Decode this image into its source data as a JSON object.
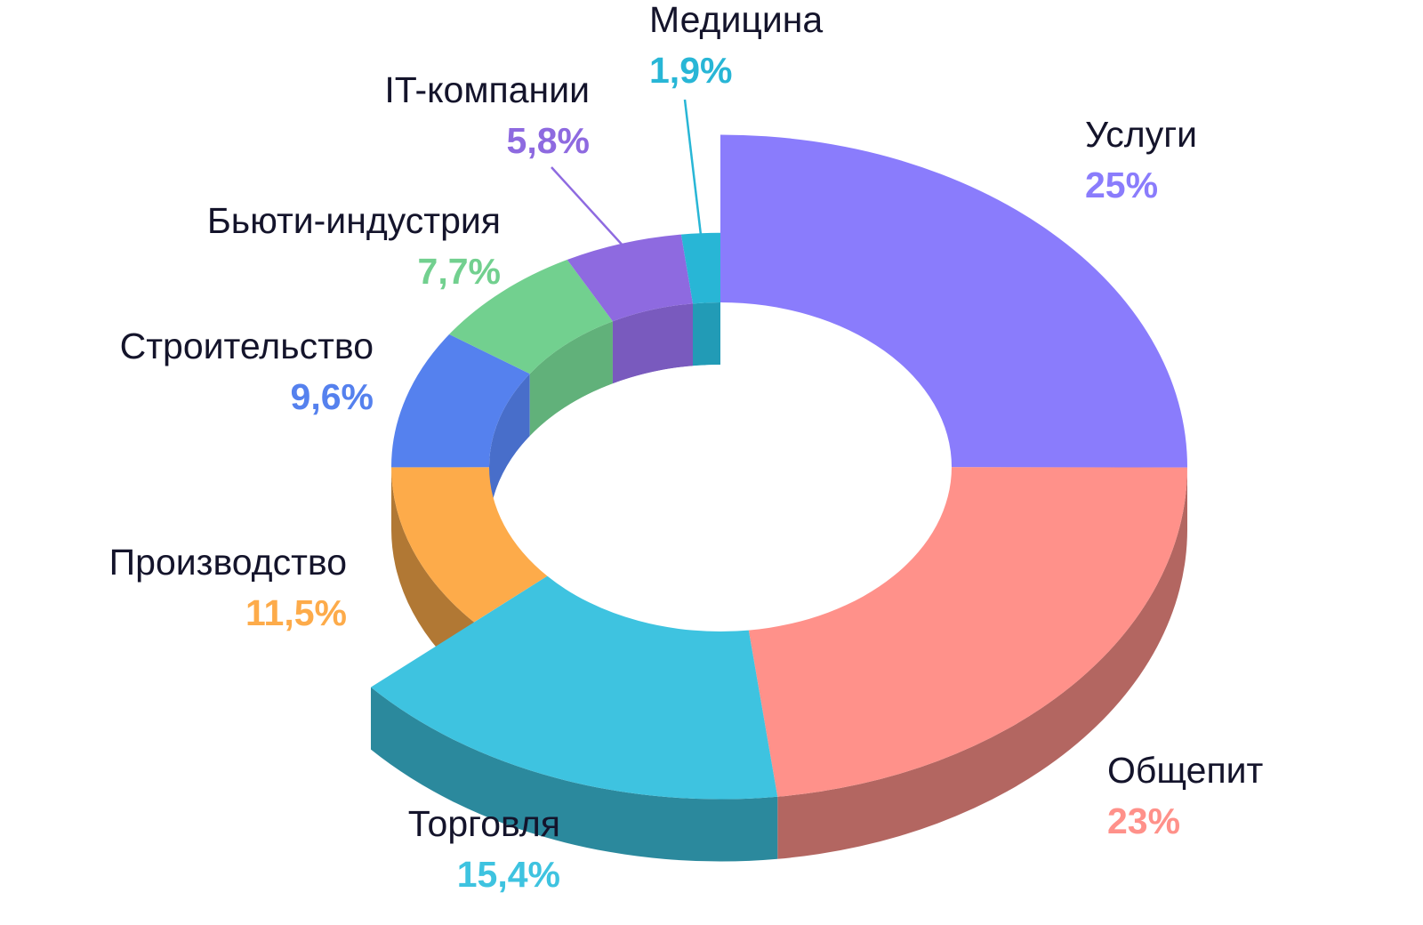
{
  "chart_data": {
    "type": "pie",
    "variant": "3d-donut",
    "title": "",
    "unit": "%",
    "slices": [
      {
        "name": "Услуги",
        "label": "25%",
        "value": 25,
        "color": "#8a7cfc",
        "emphasis": true
      },
      {
        "name": "Общепит",
        "label": "23%",
        "value": 23,
        "color": "#ff918a",
        "emphasis": true
      },
      {
        "name": "Торговля",
        "label": "15,4%",
        "value": 15.4,
        "color": "#3ec3e0",
        "emphasis": true
      },
      {
        "name": "Производство",
        "label": "11,5%",
        "value": 11.5,
        "color": "#fdab4a",
        "emphasis": false
      },
      {
        "name": "Строительство",
        "label": "9,6%",
        "value": 9.6,
        "color": "#5581ee",
        "emphasis": false
      },
      {
        "name": "Бьюти-индустрия",
        "label": "7,7%",
        "value": 7.7,
        "color": "#72d08f",
        "emphasis": false
      },
      {
        "name": "IT-компании",
        "label": "5,8%",
        "value": 5.8,
        "color": "#8e6ae0",
        "emphasis": false
      },
      {
        "name": "Медицина",
        "label": "1,9%",
        "value": 1.9,
        "color": "#28b6d6",
        "emphasis": false
      }
    ]
  }
}
